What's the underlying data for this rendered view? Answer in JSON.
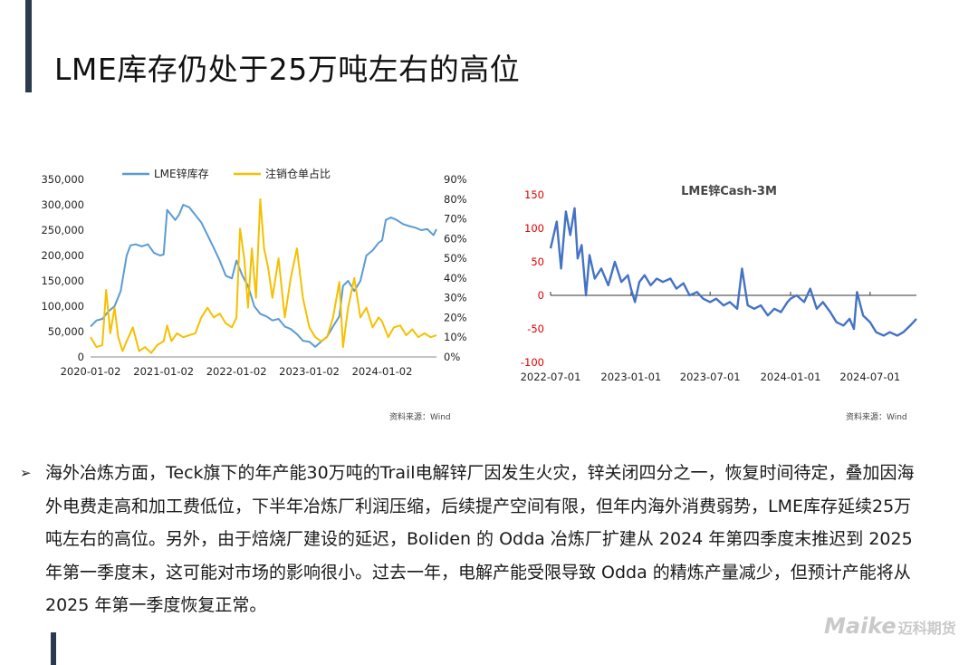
{
  "page": {
    "title": "LME库存仍处于25万吨左右的高位",
    "source1": "资料来源：Wind",
    "source2": "资料来源：Wind",
    "bullet_marker": "➢",
    "body": "海外冶炼方面，Teck旗下的年产能30万吨的Trail电解锌厂因发生火灾，锌关闭四分之一，恢复时间待定，叠加因海外电费走高和加工费低位，下半年冶炼厂利润压缩，后续提产空间有限，但年内海外消费弱势，LME库存延续25万吨左右的高位。另外，由于焙烧厂建设的延迟，Boliden 的 Odda 冶炼厂扩建从 2024 年第四季度末推迟到 2025 年第一季度末，这可能对市场的影响很小。过去一年，电解产能受限导致 Odda 的精炼产量减少，但预计产能将从 2025 年第一季度恢复正常。",
    "logo_en": "Maike",
    "logo_cn": "迈科期货"
  },
  "chart_data": [
    {
      "type": "line",
      "title": "",
      "xlabel": "",
      "ylabel": "",
      "x_ticks": [
        "2020-01-02",
        "2021-01-02",
        "2022-01-02",
        "2023-01-02",
        "2024-01-02"
      ],
      "y_ticks": [
        "0",
        "50,000",
        "100,000",
        "150,000",
        "200,000",
        "250,000",
        "300,000",
        "350,000"
      ],
      "y2_ticks": [
        "0%",
        "10%",
        "20%",
        "30%",
        "40%",
        "50%",
        "60%",
        "70%",
        "80%",
        "90%"
      ],
      "ylim": [
        0,
        350000
      ],
      "y2lim": [
        0,
        90
      ],
      "xlim": [
        "2020-01-02",
        "2024-09-30"
      ],
      "grid": false,
      "legend": "top",
      "series": [
        {
          "name": "LME锌库存",
          "axis": "left",
          "color": "#5b9bd5",
          "points": [
            [
              "2020-01-02",
              60000
            ],
            [
              "2020-02-01",
              72000
            ],
            [
              "2020-03-01",
              75000
            ],
            [
              "2020-04-01",
              90000
            ],
            [
              "2020-05-01",
              100000
            ],
            [
              "2020-06-01",
              130000
            ],
            [
              "2020-07-01",
              200000
            ],
            [
              "2020-07-20",
              220000
            ],
            [
              "2020-08-15",
              222000
            ],
            [
              "2020-09-15",
              218000
            ],
            [
              "2020-10-15",
              222000
            ],
            [
              "2020-11-15",
              205000
            ],
            [
              "2020-12-15",
              200000
            ],
            [
              "2021-01-02",
              202000
            ],
            [
              "2021-01-20",
              290000
            ],
            [
              "2021-03-01",
              270000
            ],
            [
              "2021-03-20",
              280000
            ],
            [
              "2021-04-10",
              300000
            ],
            [
              "2021-05-10",
              295000
            ],
            [
              "2021-06-10",
              280000
            ],
            [
              "2021-07-10",
              265000
            ],
            [
              "2021-08-10",
              240000
            ],
            [
              "2021-09-10",
              215000
            ],
            [
              "2021-10-10",
              190000
            ],
            [
              "2021-11-10",
              160000
            ],
            [
              "2021-12-10",
              155000
            ],
            [
              "2022-01-02",
              190000
            ],
            [
              "2022-02-01",
              160000
            ],
            [
              "2022-03-01",
              140000
            ],
            [
              "2022-04-01",
              100000
            ],
            [
              "2022-05-01",
              85000
            ],
            [
              "2022-06-01",
              80000
            ],
            [
              "2022-07-01",
              72000
            ],
            [
              "2022-08-01",
              75000
            ],
            [
              "2022-09-01",
              60000
            ],
            [
              "2022-10-01",
              55000
            ],
            [
              "2022-11-01",
              45000
            ],
            [
              "2022-12-01",
              32000
            ],
            [
              "2023-01-02",
              30000
            ],
            [
              "2023-02-01",
              20000
            ],
            [
              "2023-03-01",
              30000
            ],
            [
              "2023-04-01",
              40000
            ],
            [
              "2023-05-01",
              60000
            ],
            [
              "2023-06-01",
              80000
            ],
            [
              "2023-06-20",
              140000
            ],
            [
              "2023-07-15",
              150000
            ],
            [
              "2023-08-15",
              130000
            ],
            [
              "2023-09-15",
              150000
            ],
            [
              "2023-10-15",
              200000
            ],
            [
              "2023-11-15",
              210000
            ],
            [
              "2023-12-15",
              225000
            ],
            [
              "2024-01-02",
              230000
            ],
            [
              "2024-01-20",
              270000
            ],
            [
              "2024-02-15",
              275000
            ],
            [
              "2024-03-15",
              270000
            ],
            [
              "2024-04-15",
              262000
            ],
            [
              "2024-05-15",
              258000
            ],
            [
              "2024-06-15",
              255000
            ],
            [
              "2024-07-15",
              250000
            ],
            [
              "2024-08-15",
              252000
            ],
            [
              "2024-09-15",
              240000
            ],
            [
              "2024-09-30",
              252000
            ]
          ]
        },
        {
          "name": "注销仓单占比",
          "axis": "right",
          "color": "#f5c000",
          "points": [
            [
              "2020-01-02",
              10
            ],
            [
              "2020-02-01",
              5
            ],
            [
              "2020-03-01",
              6
            ],
            [
              "2020-03-20",
              34
            ],
            [
              "2020-04-10",
              12
            ],
            [
              "2020-05-01",
              25
            ],
            [
              "2020-05-20",
              10
            ],
            [
              "2020-06-10",
              3
            ],
            [
              "2020-07-01",
              8
            ],
            [
              "2020-08-01",
              15
            ],
            [
              "2020-09-01",
              3
            ],
            [
              "2020-10-01",
              5
            ],
            [
              "2020-11-01",
              2
            ],
            [
              "2020-12-01",
              6
            ],
            [
              "2021-01-02",
              8
            ],
            [
              "2021-01-20",
              16
            ],
            [
              "2021-02-10",
              8
            ],
            [
              "2021-03-10",
              12
            ],
            [
              "2021-04-10",
              10
            ],
            [
              "2021-05-10",
              11
            ],
            [
              "2021-06-10",
              12
            ],
            [
              "2021-07-10",
              20
            ],
            [
              "2021-08-10",
              25
            ],
            [
              "2021-09-10",
              20
            ],
            [
              "2021-10-10",
              22
            ],
            [
              "2021-11-10",
              17
            ],
            [
              "2021-12-10",
              15
            ],
            [
              "2022-01-02",
              20
            ],
            [
              "2022-01-20",
              65
            ],
            [
              "2022-02-10",
              50
            ],
            [
              "2022-03-01",
              25
            ],
            [
              "2022-03-20",
              55
            ],
            [
              "2022-04-10",
              30
            ],
            [
              "2022-05-01",
              80
            ],
            [
              "2022-05-20",
              55
            ],
            [
              "2022-06-10",
              45
            ],
            [
              "2022-07-01",
              30
            ],
            [
              "2022-08-01",
              50
            ],
            [
              "2022-09-01",
              20
            ],
            [
              "2022-10-01",
              40
            ],
            [
              "2022-11-01",
              55
            ],
            [
              "2022-12-01",
              30
            ],
            [
              "2023-01-02",
              15
            ],
            [
              "2023-02-01",
              10
            ],
            [
              "2023-03-01",
              8
            ],
            [
              "2023-04-01",
              10
            ],
            [
              "2023-05-01",
              20
            ],
            [
              "2023-06-01",
              38
            ],
            [
              "2023-06-20",
              5
            ],
            [
              "2023-07-15",
              25
            ],
            [
              "2023-08-15",
              40
            ],
            [
              "2023-09-15",
              20
            ],
            [
              "2023-10-15",
              25
            ],
            [
              "2023-11-15",
              15
            ],
            [
              "2023-12-15",
              20
            ],
            [
              "2024-01-02",
              18
            ],
            [
              "2024-02-01",
              10
            ],
            [
              "2024-03-01",
              15
            ],
            [
              "2024-04-01",
              16
            ],
            [
              "2024-05-01",
              11
            ],
            [
              "2024-06-01",
              14
            ],
            [
              "2024-07-01",
              10
            ],
            [
              "2024-08-01",
              12
            ],
            [
              "2024-09-01",
              10
            ],
            [
              "2024-09-30",
              11
            ]
          ]
        }
      ]
    },
    {
      "type": "line",
      "title": "LME锌Cash-3M",
      "xlabel": "",
      "ylabel": "",
      "x_ticks": [
        "2022-07-01",
        "2023-01-01",
        "2023-07-01",
        "2024-01-01",
        "2024-07-01"
      ],
      "y_ticks": [
        "150",
        "100",
        "50",
        "0",
        "-50",
        "-100"
      ],
      "y_tick_values": [
        150,
        100,
        50,
        0,
        -50,
        -100
      ],
      "y_tick_color": "#e00000",
      "ylim": [
        -100,
        150
      ],
      "xlim": [
        "2022-07-01",
        "2024-10-15"
      ],
      "grid": false,
      "series": [
        {
          "name": "",
          "color": "#4472c4",
          "points": [
            [
              "2022-07-01",
              70
            ],
            [
              "2022-07-15",
              110
            ],
            [
              "2022-07-25",
              40
            ],
            [
              "2022-08-05",
              125
            ],
            [
              "2022-08-15",
              90
            ],
            [
              "2022-08-25",
              130
            ],
            [
              "2022-09-01",
              55
            ],
            [
              "2022-09-10",
              75
            ],
            [
              "2022-09-20",
              0
            ],
            [
              "2022-09-28",
              60
            ],
            [
              "2022-10-10",
              25
            ],
            [
              "2022-10-25",
              40
            ],
            [
              "2022-11-10",
              15
            ],
            [
              "2022-11-25",
              50
            ],
            [
              "2022-12-10",
              20
            ],
            [
              "2022-12-25",
              30
            ],
            [
              "2023-01-01",
              10
            ],
            [
              "2023-01-10",
              -10
            ],
            [
              "2023-01-20",
              20
            ],
            [
              "2023-02-01",
              30
            ],
            [
              "2023-02-15",
              15
            ],
            [
              "2023-03-01",
              25
            ],
            [
              "2023-03-15",
              20
            ],
            [
              "2023-04-01",
              25
            ],
            [
              "2023-04-15",
              10
            ],
            [
              "2023-05-01",
              18
            ],
            [
              "2023-05-15",
              0
            ],
            [
              "2023-06-01",
              5
            ],
            [
              "2023-06-15",
              -5
            ],
            [
              "2023-07-01",
              -10
            ],
            [
              "2023-07-15",
              -5
            ],
            [
              "2023-08-01",
              -15
            ],
            [
              "2023-08-15",
              -10
            ],
            [
              "2023-09-01",
              -20
            ],
            [
              "2023-09-12",
              40
            ],
            [
              "2023-09-25",
              -15
            ],
            [
              "2023-10-10",
              -20
            ],
            [
              "2023-10-25",
              -15
            ],
            [
              "2023-11-10",
              -30
            ],
            [
              "2023-11-25",
              -20
            ],
            [
              "2023-12-10",
              -25
            ],
            [
              "2023-12-25",
              -10
            ],
            [
              "2024-01-01",
              -5
            ],
            [
              "2024-01-15",
              0
            ],
            [
              "2024-02-01",
              -10
            ],
            [
              "2024-02-15",
              10
            ],
            [
              "2024-03-01",
              -20
            ],
            [
              "2024-03-15",
              -10
            ],
            [
              "2024-04-01",
              -25
            ],
            [
              "2024-04-15",
              -40
            ],
            [
              "2024-05-01",
              -45
            ],
            [
              "2024-05-15",
              -35
            ],
            [
              "2024-05-25",
              -50
            ],
            [
              "2024-06-01",
              5
            ],
            [
              "2024-06-15",
              -30
            ],
            [
              "2024-07-01",
              -40
            ],
            [
              "2024-07-15",
              -55
            ],
            [
              "2024-08-01",
              -60
            ],
            [
              "2024-08-15",
              -55
            ],
            [
              "2024-09-01",
              -60
            ],
            [
              "2024-09-15",
              -55
            ],
            [
              "2024-10-01",
              -45
            ],
            [
              "2024-10-15",
              -35
            ]
          ]
        }
      ]
    }
  ]
}
